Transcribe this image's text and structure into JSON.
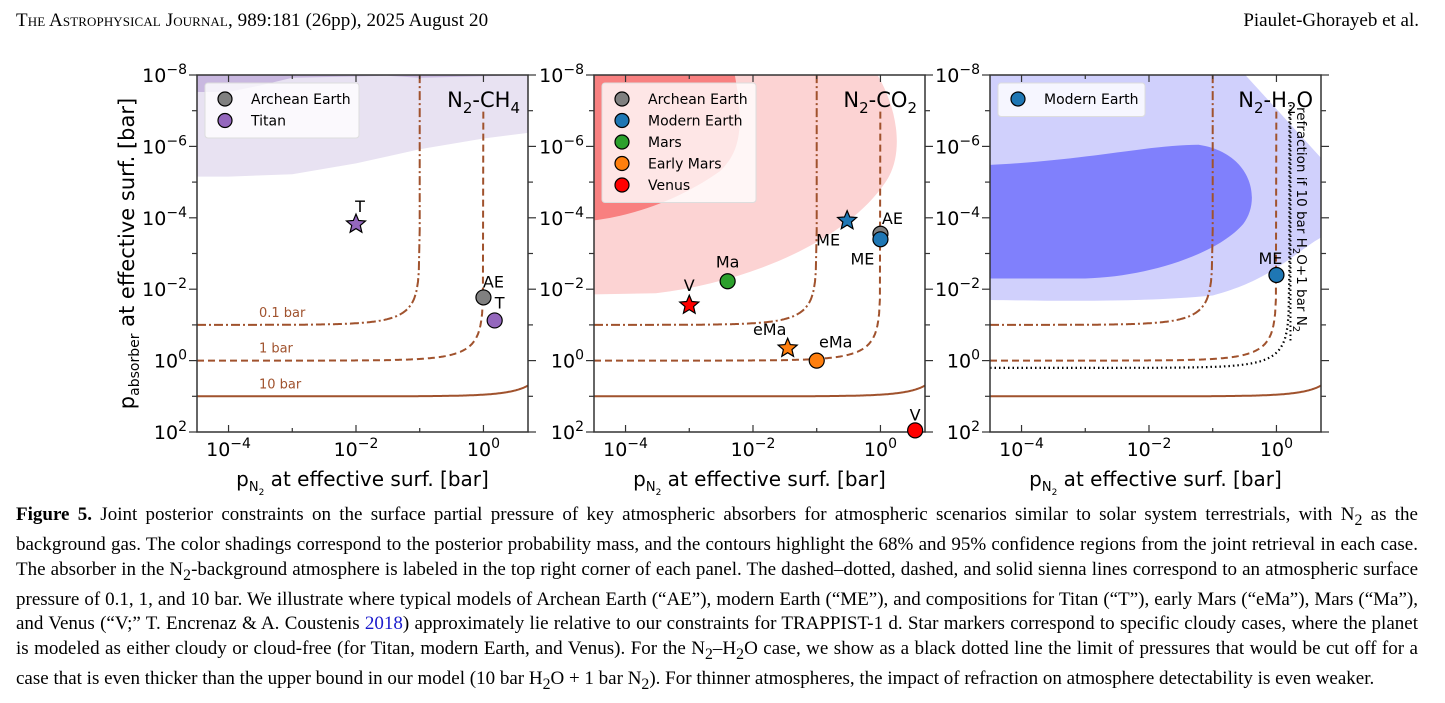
{
  "header": {
    "journal": "The Astrophysical Journal",
    "citation": ", 989:181 (26pp), 2025 August 20",
    "authors": "Piaulet-Ghorayeb et al."
  },
  "caption": {
    "label": "Figure 5.",
    "segments": [
      " Joint posterior constraints on the surface partial pressure of key atmospheric absorbers for atmospheric scenarios similar to solar system terrestrials, with N",
      "2",
      " as the background gas. The color shadings correspond to the posterior probability mass, and the contours highlight the 68% and 95% confidence regions from the joint retrieval in each case. The absorber in the N",
      "2",
      "-background atmosphere is labeled in the top right corner of each panel. The dashed–dotted, dashed, and solid sienna lines correspond to an atmospheric surface pressure of 0.1, 1, and 10 bar. We illustrate where typical models of Archean Earth (“AE”), modern Earth (“ME”), and compositions for Titan (“T”), early Mars (“eMa”), Mars (“Ma”), and Venus (“V;” T. Encrenaz & A. Coustenis ",
      "2018",
      ") approximately lie relative to our constraints for TRAPPIST-1 d. Star markers correspond to specific cloudy cases, where the planet is modeled as either cloudy or cloud-free (for Titan, modern Earth, and Venus). For the N",
      "2",
      "–H",
      "2",
      "O case, we show as a black dotted line the limit of pressures that would be cut off for a case that is even thicker than the upper bound in our model (10 bar H",
      "2",
      "O + 1 bar N",
      "2",
      "). For thinner atmospheres, the impact of refraction on atmosphere detectability is even weaker."
    ]
  },
  "colors": {
    "sienna": "#a0522d",
    "archean_earth": "#808080",
    "titan": "#9467bd",
    "modern_earth": "#1f77b4",
    "mars": "#2ca02c",
    "early_mars": "#ff7f0e",
    "venus": "#ff0000",
    "ch4_68": "#c9b8e0",
    "ch4_95": "#e8e2f2",
    "co2_68": "#f88080",
    "co2_95": "#fcd3d3",
    "h2o_68": "#8080fc",
    "h2o_95": "#d0d0fc"
  },
  "chart_data": [
    {
      "type": "scatter",
      "panel_label": "N₂-CH₄",
      "absorber": "CH4",
      "xlabel": "p_N2 at effective surf. [bar]",
      "ylabel": "p_absorber at effective surf. [bar]",
      "xscale": "log",
      "yscale": "log",
      "xlim": [
        3.2e-05,
        5.0
      ],
      "ylim": [
        100,
        1e-08
      ],
      "y_inverted": true,
      "xticks": [
        "10^-4",
        "10^-2",
        "10^0"
      ],
      "yticks": [
        "10^-8",
        "10^-6",
        "10^-4",
        "10^-2",
        "10^0",
        "10^2"
      ],
      "legend": [
        "Archean Earth",
        "Titan"
      ],
      "legend_position": "top-left",
      "pressure_contours": [
        {
          "label": "0.1 bar",
          "total_bar": 0.1,
          "style": "dash-dot"
        },
        {
          "label": "1 bar",
          "total_bar": 1,
          "style": "dashed"
        },
        {
          "label": "10 bar",
          "total_bar": 10,
          "style": "solid"
        }
      ],
      "confidence_regions": [
        {
          "level": "68%",
          "description": "thin band along top edge, p_absorber < ~3e-8 at x<1e-4 and near 1e-8 elsewhere"
        },
        {
          "level": "95%",
          "description": "p_absorber < ~7e-6 at low p_N2, rising to ~4e-7 at high p_N2"
        }
      ],
      "points": [
        {
          "label": "T",
          "name": "Titan",
          "marker": "star",
          "x": 0.01,
          "y": 0.00015
        },
        {
          "label": "AE",
          "name": "Archean Earth",
          "marker": "circle",
          "x": 1.0,
          "y": 0.017
        },
        {
          "label": "T",
          "name": "Titan",
          "marker": "circle",
          "x": 1.5,
          "y": 0.075
        }
      ]
    },
    {
      "type": "scatter",
      "panel_label": "N₂-CO₂",
      "absorber": "CO2",
      "xlabel": "p_N2 at effective surf. [bar]",
      "ylabel": "",
      "xscale": "log",
      "yscale": "log",
      "xlim": [
        3.2e-05,
        5.0
      ],
      "ylim": [
        100,
        1e-08
      ],
      "y_inverted": true,
      "xticks": [
        "10^-4",
        "10^-2",
        "10^0"
      ],
      "yticks": [
        "10^-8",
        "10^-6",
        "10^-4",
        "10^-2",
        "10^0",
        "10^2"
      ],
      "legend": [
        "Archean Earth",
        "Modern Earth",
        "Mars",
        "Early Mars",
        "Venus"
      ],
      "legend_position": "top-left",
      "pressure_contours": [
        {
          "label": "0.1 bar",
          "total_bar": 0.1,
          "style": "dash-dot"
        },
        {
          "label": "1 bar",
          "total_bar": 1,
          "style": "dashed"
        },
        {
          "label": "10 bar",
          "total_bar": 10,
          "style": "solid"
        }
      ],
      "confidence_regions": [
        {
          "level": "68%",
          "description": "upper-left region down to ~1e-4 at low p_N2, right boundary near p_N2 ~ 1e-2"
        },
        {
          "level": "95%",
          "description": "extends to ~1e-2 at low p_N2 and to p_N2 ~ 0.5 at top"
        }
      ],
      "points": [
        {
          "label": "ME",
          "name": "Modern Earth",
          "marker": "star",
          "x": 0.3,
          "y": 0.00012
        },
        {
          "label": "AE",
          "name": "Archean Earth",
          "marker": "circle",
          "x": 1.0,
          "y": 0.00028
        },
        {
          "label": "ME",
          "name": "Modern Earth",
          "marker": "circle",
          "x": 1.0,
          "y": 0.0004
        },
        {
          "label": "Ma",
          "name": "Mars",
          "marker": "circle",
          "x": 0.004,
          "y": 0.006
        },
        {
          "label": "V",
          "name": "Venus",
          "marker": "star",
          "x": 0.001,
          "y": 0.028
        },
        {
          "label": "eMa",
          "name": "Early Mars",
          "marker": "star",
          "x": 0.035,
          "y": 0.45
        },
        {
          "label": "eMa",
          "name": "Early Mars",
          "marker": "circle",
          "x": 0.1,
          "y": 1.0
        },
        {
          "label": "V",
          "name": "Venus",
          "marker": "circle",
          "x": 3.5,
          "y": 90
        }
      ]
    },
    {
      "type": "scatter",
      "panel_label": "N₂-H₂O",
      "absorber": "H2O",
      "xlabel": "p_N2 at effective surf. [bar]",
      "ylabel": "",
      "xscale": "log",
      "yscale": "log",
      "xlim": [
        3.2e-05,
        5.0
      ],
      "ylim": [
        100,
        1e-08
      ],
      "y_inverted": true,
      "xticks": [
        "10^-4",
        "10^-2",
        "10^0"
      ],
      "yticks": [
        "10^-8",
        "10^-6",
        "10^-4",
        "10^-2",
        "10^0",
        "10^2"
      ],
      "legend": [
        "Modern Earth"
      ],
      "legend_position": "top-left",
      "annotation": "refraction if 10 bar H₂O+1 bar N₂",
      "pressure_contours": [
        {
          "label": "0.1 bar",
          "total_bar": 0.1,
          "style": "dash-dot"
        },
        {
          "label": "1 bar",
          "total_bar": 1,
          "style": "dashed"
        },
        {
          "label": "10 bar",
          "total_bar": 10,
          "style": "solid"
        },
        {
          "label": "refraction limit",
          "total_bar": 1.6,
          "style": "dotted-black"
        }
      ],
      "confidence_regions": [
        {
          "level": "68%",
          "description": "from ~3e-6 to ~5e-3 at low p_N2, rounding off near p_N2 ~ 0.3"
        },
        {
          "level": "95%",
          "description": "from top edge to ~2e-2 at low p_N2, narrowing toward p_N2 ~ 5"
        }
      ],
      "points": [
        {
          "label": "ME",
          "name": "Modern Earth",
          "marker": "circle",
          "x": 1.0,
          "y": 0.004
        }
      ]
    }
  ]
}
